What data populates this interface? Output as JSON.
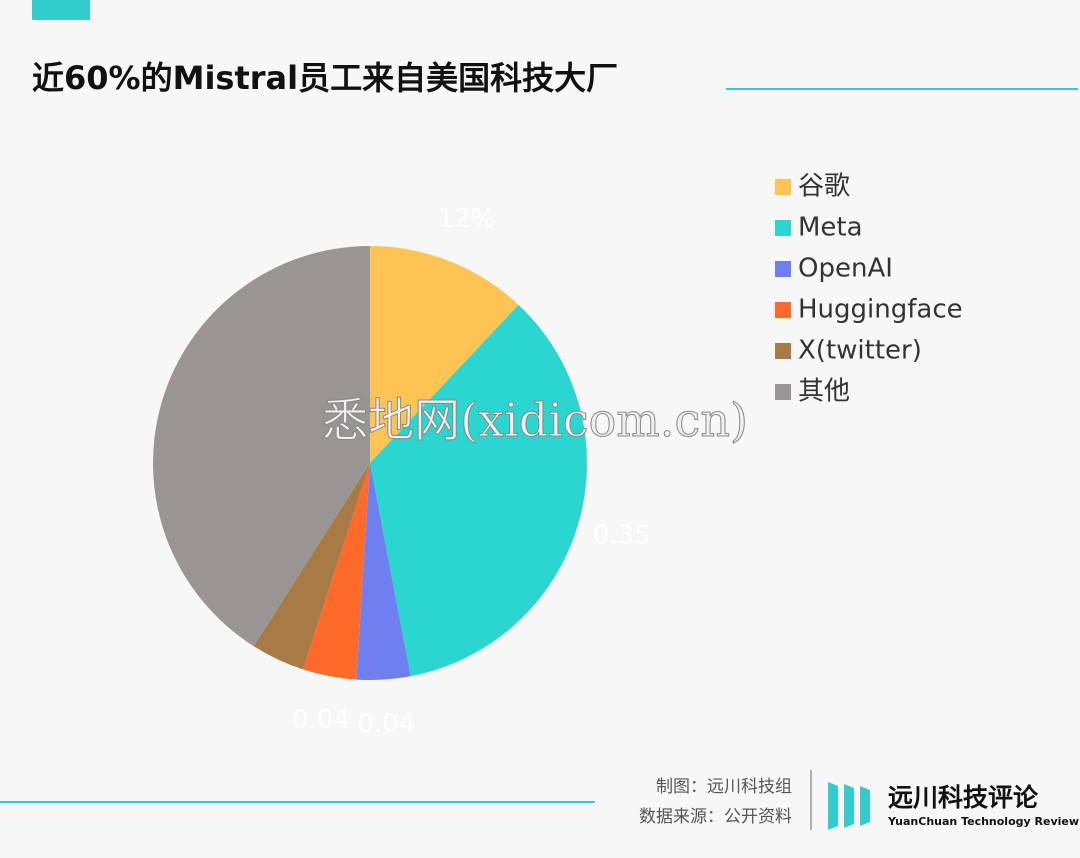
{
  "chart_data": {
    "type": "pie",
    "title": "近60%的Mistral员工来自美国科技大厂",
    "categories": [
      "谷歌",
      "Meta",
      "OpenAI",
      "Huggingface",
      "X(twitter)",
      "其他"
    ],
    "values": [
      0.12,
      0.35,
      0.04,
      0.04,
      0.04,
      0.41
    ],
    "value_labels": [
      "12%",
      "0.35",
      "0.04",
      "0.04",
      null,
      null
    ],
    "colors": [
      "#fdc453",
      "#2ad6cf",
      "#6f7ff0",
      "#fd6a2a",
      "#a87a46",
      "#9a9595"
    ],
    "legend": "right"
  },
  "watermark": "悉地网(xidicom.cn)",
  "footer": {
    "credit": "制图：远川科技组",
    "source": "数据来源：公开资料",
    "brand": "远川科技评论",
    "brand_en": "YuanChuan Technology Review"
  }
}
